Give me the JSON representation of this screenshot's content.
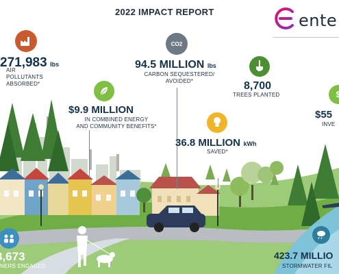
{
  "report": {
    "title": "2022 IMPACT REPORT"
  },
  "brand": {
    "name": "ente",
    "accent": "#e0126d",
    "accent2": "#8b2fb8"
  },
  "colors": {
    "navy": "#14324a",
    "water": "#7fc3d9",
    "grass": "#5d9a3a",
    "road": "#b9bdc2"
  },
  "stats": {
    "air_pollutants": {
      "value": "271,983",
      "unit": "lbs",
      "caption": "AIR POLLUTANTS ABSORBED*",
      "icon": "factory-icon"
    },
    "carbon": {
      "value": "94.5 MILLION",
      "unit": "lbs",
      "caption_line1": "CARBON SEQUESTERED/",
      "caption_line2": "AVOIDED*",
      "icon": "co2-cloud-icon",
      "icon_text": "CO2"
    },
    "trees": {
      "value": "8,700",
      "caption": "TREES PLANTED",
      "icon": "shovel-icon"
    },
    "benefits": {
      "value": "$9.9 MILLION",
      "caption_line1": "IN COMBINED ENERGY",
      "caption_line2": "AND COMMUNITY BENEFITS*",
      "icon": "leaf-hand-icon"
    },
    "energy": {
      "value": "36.8 MILLION",
      "unit": "kWh",
      "caption": "SAVED*",
      "icon": "lightbulb-icon"
    },
    "investment": {
      "value": "$55",
      "caption": "INVE",
      "icon": "dollar-icon"
    },
    "partners": {
      "value": "3,673",
      "caption": "NERS ENGAGED",
      "icon": "people-icon"
    },
    "stormwater": {
      "value": "423.7 MILLIO",
      "caption": "STORMWATER FIL",
      "icon": "rain-cloud-icon"
    }
  }
}
